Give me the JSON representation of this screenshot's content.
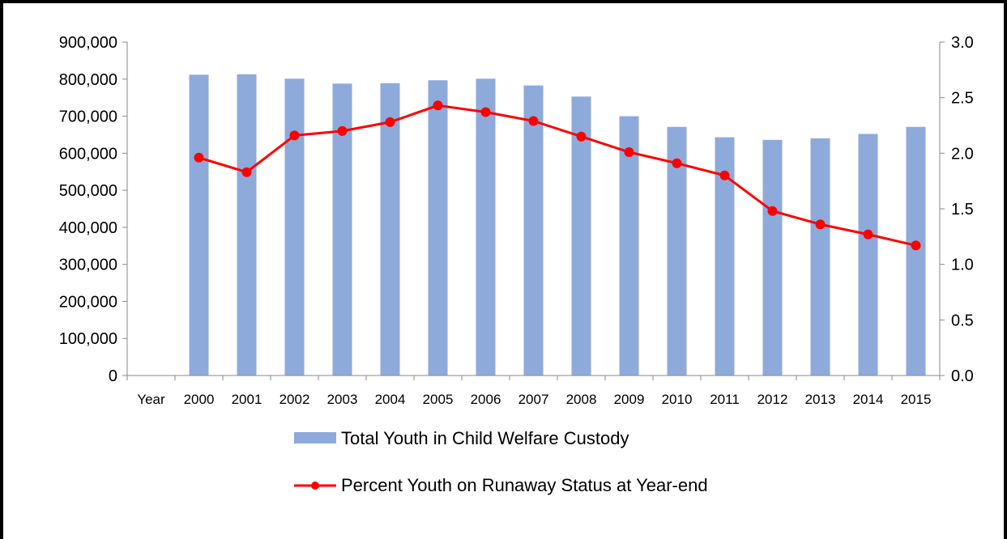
{
  "chart_data": {
    "type": "bar+line",
    "categories": [
      "Year",
      "2000",
      "2001",
      "2002",
      "2003",
      "2004",
      "2005",
      "2006",
      "2007",
      "2008",
      "2009",
      "2010",
      "2011",
      "2012",
      "2013",
      "2014",
      "2015"
    ],
    "series": [
      {
        "name": "Total Youth in Child Welfare Custody",
        "type": "bar",
        "axis": "left",
        "color": "#8eaadb",
        "values": [
          null,
          812000,
          813000,
          801000,
          788000,
          789000,
          797000,
          801000,
          783000,
          753000,
          700000,
          671000,
          643000,
          636000,
          640000,
          652000,
          671000
        ]
      },
      {
        "name": "Percent Youth on Runaway Status at Year-end",
        "type": "line",
        "axis": "right",
        "color": "#ff0000",
        "values": [
          null,
          1.96,
          1.83,
          2.16,
          2.2,
          2.28,
          2.43,
          2.37,
          2.29,
          2.15,
          2.01,
          1.91,
          1.8,
          1.48,
          1.36,
          1.27,
          1.17
        ]
      }
    ],
    "yleft": {
      "min": 0,
      "max": 900000,
      "step": 100000,
      "tick_labels": [
        "0",
        "100,000",
        "200,000",
        "300,000",
        "400,000",
        "500,000",
        "600,000",
        "700,000",
        "800,000",
        "900,000"
      ]
    },
    "yright": {
      "min": 0,
      "max": 3,
      "step": 0.5,
      "tick_labels": [
        "0.0",
        "0.5",
        "1.0",
        "1.5",
        "2.0",
        "2.5",
        "3.0"
      ]
    },
    "grid": false,
    "legend_position": "bottom"
  }
}
